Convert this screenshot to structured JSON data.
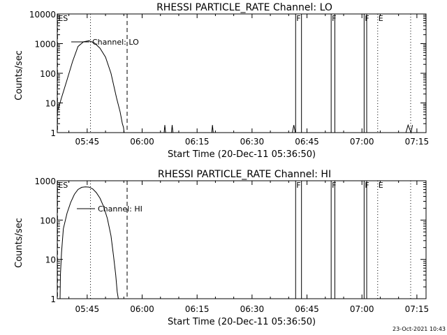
{
  "chart_data": [
    {
      "type": "line",
      "title": "RHESSI PARTICLE_RATE Channel: LO",
      "xlabel": "Start Time (20-Dec-11 05:36:50)",
      "ylabel": "Counts/sec",
      "yscale": "log",
      "ylim": [
        1,
        10000
      ],
      "xlim": [
        336.833,
        437.5
      ],
      "x_units": "minutes after 00:00 UT on 20-Dec-11",
      "xticks": [
        {
          "x": 345,
          "label": "05:45"
        },
        {
          "x": 360,
          "label": "06:00"
        },
        {
          "x": 375,
          "label": "06:15"
        },
        {
          "x": 390,
          "label": "06:30"
        },
        {
          "x": 405,
          "label": "06:45"
        },
        {
          "x": 420,
          "label": "07:00"
        },
        {
          "x": 435,
          "label": "07:15"
        }
      ],
      "yticks": [
        {
          "y": 1,
          "label": "1"
        },
        {
          "y": 10,
          "label": "10"
        },
        {
          "y": 100,
          "label": "100"
        },
        {
          "y": 1000,
          "label": "1000"
        },
        {
          "y": 10000,
          "label": "10000"
        }
      ],
      "legend": "top-left",
      "series": [
        {
          "name": "Channel: LO",
          "x": [
            336.833,
            338,
            339.5,
            341,
            342.5,
            344,
            345.5,
            347,
            348.5,
            350,
            351.5,
            353,
            354,
            354.6,
            354.9,
            355.1,
            355.4,
            366,
            366.2,
            366.4,
            368,
            368.2,
            368.4,
            379,
            379.2,
            379.4,
            401,
            401.4,
            401.8,
            432,
            432.6,
            433.4,
            433.8
          ],
          "y": [
            5,
            15,
            60,
            250,
            800,
            1150,
            1250,
            1050,
            700,
            350,
            100,
            15,
            5,
            2,
            1.5,
            1,
            1,
            1,
            1.8,
            1,
            1,
            1.8,
            1,
            1,
            1.8,
            1,
            1,
            1.8,
            1,
            1,
            1.8,
            1,
            1.8
          ]
        }
      ],
      "gaps": [
        [
          401.8,
          403.5
        ],
        [
          411.5,
          412.6
        ],
        [
          420.5,
          421.3
        ]
      ],
      "vlines": [
        {
          "x": 336.9,
          "style": "dashed",
          "label": "ES"
        },
        {
          "x": 345.9,
          "style": "dotted"
        },
        {
          "x": 355.9,
          "style": "dashed"
        },
        {
          "x": 401.9,
          "style": "solid",
          "label": "F"
        },
        {
          "x": 411.6,
          "style": "solid",
          "label": "F"
        },
        {
          "x": 420.6,
          "style": "solid",
          "label": "F"
        },
        {
          "x": 424.3,
          "style": "dotted",
          "label": "E"
        },
        {
          "x": 433.3,
          "style": "dotted"
        }
      ]
    },
    {
      "type": "line",
      "title": "RHESSI PARTICLE_RATE Channel: HI",
      "xlabel": "Start Time (20-Dec-11 05:36:50)",
      "ylabel": "Counts/sec",
      "yscale": "log",
      "ylim": [
        1,
        1000
      ],
      "xlim": [
        336.833,
        437.5
      ],
      "x_units": "minutes after 00:00 UT on 20-Dec-11",
      "xticks": [
        {
          "x": 345,
          "label": "05:45"
        },
        {
          "x": 360,
          "label": "06:00"
        },
        {
          "x": 375,
          "label": "06:15"
        },
        {
          "x": 390,
          "label": "06:30"
        },
        {
          "x": 405,
          "label": "06:45"
        },
        {
          "x": 420,
          "label": "07:00"
        },
        {
          "x": 435,
          "label": "07:15"
        }
      ],
      "yticks": [
        {
          "y": 1,
          "label": "1"
        },
        {
          "y": 10,
          "label": "10"
        },
        {
          "y": 100,
          "label": "100"
        },
        {
          "y": 1000,
          "label": "1000"
        }
      ],
      "legend": "top-left",
      "series": [
        {
          "name": "Channel: HI",
          "x": [
            337.6,
            337.7,
            338,
            338.5,
            339.5,
            340.5,
            341.5,
            342.5,
            343.5,
            344.5,
            345.5,
            346.5,
            347.5,
            348.5,
            349.5,
            350.5,
            351.5,
            352.2,
            352.8,
            353.2,
            353.5
          ],
          "y": [
            1,
            4,
            15,
            60,
            150,
            280,
            450,
            600,
            680,
            700,
            690,
            620,
            500,
            360,
            220,
            110,
            40,
            12,
            4,
            1.5,
            1
          ]
        }
      ],
      "gaps": [
        [
          401.8,
          403.5
        ],
        [
          411.5,
          412.6
        ],
        [
          420.5,
          421.3
        ]
      ],
      "vlines": [
        {
          "x": 336.9,
          "style": "dashed",
          "label": "ES"
        },
        {
          "x": 345.9,
          "style": "dotted"
        },
        {
          "x": 355.9,
          "style": "dashed"
        },
        {
          "x": 401.9,
          "style": "solid",
          "label": "F"
        },
        {
          "x": 411.6,
          "style": "solid",
          "label": "F"
        },
        {
          "x": 420.6,
          "style": "solid",
          "label": "F"
        },
        {
          "x": 424.3,
          "style": "dotted",
          "label": "E"
        },
        {
          "x": 433.3,
          "style": "dotted"
        }
      ]
    }
  ],
  "timestamp": "23-Oct-2021 10:43"
}
